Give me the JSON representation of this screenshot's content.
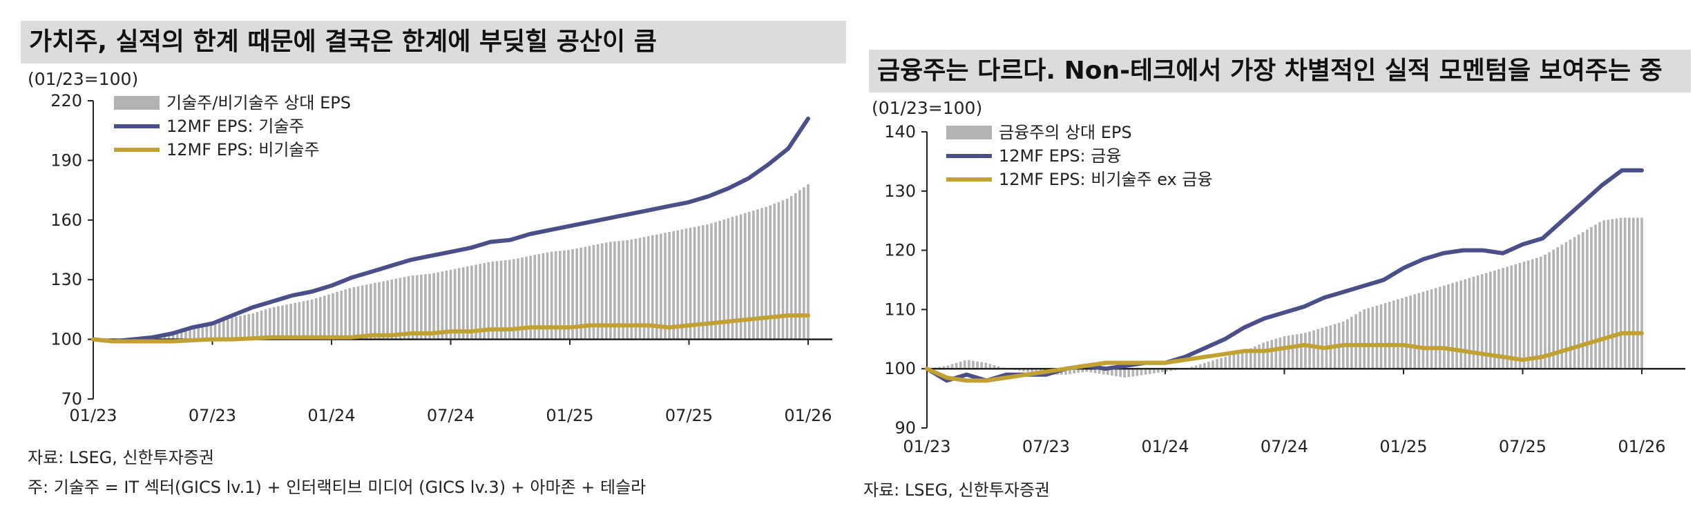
{
  "colors": {
    "tech": "#4a4f8a",
    "nontech": "#c2a133",
    "relative": "#b3b3b3",
    "title_bg": "#dcdcdc"
  },
  "left": {
    "title": "가치주, 실적의 한계 때문에 결국은 한계에 부딪힐 공산이 큼",
    "unit": "(01/23=100)",
    "source": "자료: LSEG, 신한투자증권",
    "footnote": "주: 기술주 = IT 섹터(GICS lv.1) + 인터랙티브 미디어 (GICS lv.3) + 아마존 + 테슬라"
  },
  "right": {
    "title": "금융주는 다르다. Non-테크에서 가장 차별적인 실적 모멘텀을 보여주는 중",
    "unit": "(01/23=100)",
    "source": "자료: LSEG, 신한투자증권"
  },
  "chart_data": [
    {
      "type": "line",
      "title": "가치주, 실적의 한계 때문에 결국은 한계에 부딪힐 공산이 큼",
      "ylabel": "(01/23=100)",
      "ylim": [
        70,
        220
      ],
      "yticks": [
        70,
        100,
        130,
        160,
        190,
        220
      ],
      "xlim": [
        0,
        36
      ],
      "xticks": [
        {
          "m": 0,
          "label": "01/23"
        },
        {
          "m": 6,
          "label": "07/23"
        },
        {
          "m": 12,
          "label": "01/24"
        },
        {
          "m": 18,
          "label": "07/24"
        },
        {
          "m": 24,
          "label": "01/25"
        },
        {
          "m": 30,
          "label": "07/25"
        },
        {
          "m": 36,
          "label": "01/26"
        }
      ],
      "baseline": 100,
      "legend": [
        "기술주/비기술주 상대 EPS",
        "12MF EPS: 기술주",
        "12MF EPS: 비기술주"
      ],
      "series": [
        {
          "name": "기술주/비기술주 상대 EPS",
          "kind": "bar",
          "x": [
            0,
            1,
            2,
            3,
            4,
            5,
            6,
            7,
            8,
            9,
            10,
            11,
            12,
            13,
            14,
            15,
            16,
            17,
            18,
            19,
            20,
            21,
            22,
            23,
            24,
            25,
            26,
            27,
            28,
            29,
            30,
            31,
            32,
            33,
            34,
            35,
            36
          ],
          "values": [
            100,
            99,
            100,
            101,
            104,
            106,
            108,
            111,
            113,
            116,
            118,
            120,
            123,
            126,
            128,
            130,
            132,
            133,
            135,
            137,
            139,
            140,
            142,
            144,
            145,
            147,
            149,
            150,
            152,
            154,
            156,
            158,
            161,
            164,
            167,
            171,
            178
          ]
        },
        {
          "name": "12MF EPS: 기술주",
          "kind": "line",
          "x": [
            0,
            1,
            2,
            3,
            4,
            5,
            6,
            7,
            8,
            9,
            10,
            11,
            12,
            13,
            14,
            15,
            16,
            17,
            18,
            19,
            20,
            21,
            22,
            23,
            24,
            25,
            26,
            27,
            28,
            29,
            30,
            31,
            32,
            33,
            34,
            35,
            36
          ],
          "values": [
            100,
            99,
            100,
            101,
            103,
            106,
            108,
            112,
            116,
            119,
            122,
            124,
            127,
            131,
            134,
            137,
            140,
            142,
            144,
            146,
            149,
            150,
            153,
            155,
            157,
            159,
            161,
            163,
            165,
            167,
            169,
            172,
            176,
            181,
            188,
            196,
            211
          ]
        },
        {
          "name": "12MF EPS: 비기술주",
          "kind": "line",
          "x": [
            0,
            1,
            2,
            3,
            4,
            5,
            6,
            7,
            8,
            9,
            10,
            11,
            12,
            13,
            14,
            15,
            16,
            17,
            18,
            19,
            20,
            21,
            22,
            23,
            24,
            25,
            26,
            27,
            28,
            29,
            30,
            31,
            32,
            33,
            34,
            35,
            36
          ],
          "values": [
            100,
            99,
            99,
            99,
            99,
            99.5,
            100,
            100,
            100.5,
            101,
            101,
            101,
            101,
            101,
            102,
            102,
            103,
            103,
            104,
            104,
            105,
            105,
            106,
            106,
            106,
            107,
            107,
            107,
            107,
            106,
            107,
            108,
            109,
            110,
            111,
            112,
            112
          ]
        }
      ]
    },
    {
      "type": "line",
      "title": "금융주는 다르다. Non-테크에서 가장 차별적인 실적 모멘텀을 보여주는 중",
      "ylabel": "(01/23=100)",
      "ylim": [
        90,
        140
      ],
      "yticks": [
        90,
        100,
        110,
        120,
        130,
        140
      ],
      "xlim": [
        0,
        36
      ],
      "xticks": [
        {
          "m": 0,
          "label": "01/23"
        },
        {
          "m": 6,
          "label": "07/23"
        },
        {
          "m": 12,
          "label": "01/24"
        },
        {
          "m": 18,
          "label": "07/24"
        },
        {
          "m": 24,
          "label": "01/25"
        },
        {
          "m": 30,
          "label": "07/25"
        },
        {
          "m": 36,
          "label": "01/26"
        }
      ],
      "baseline": 100,
      "legend": [
        "금융주의 상대 EPS",
        "12MF EPS: 금융",
        "12MF EPS: 비기술주 ex 금융"
      ],
      "series": [
        {
          "name": "금융주의 상대 EPS",
          "kind": "bar",
          "x": [
            0,
            1,
            2,
            3,
            4,
            5,
            6,
            7,
            8,
            9,
            10,
            11,
            12,
            13,
            14,
            15,
            16,
            17,
            18,
            19,
            20,
            21,
            22,
            23,
            24,
            25,
            26,
            27,
            28,
            29,
            30,
            31,
            32,
            33,
            34,
            35,
            36
          ],
          "values": [
            100,
            100.5,
            101.5,
            101,
            100,
            99.5,
            99,
            99,
            99.5,
            99,
            98.5,
            99,
            99.5,
            100,
            101,
            102,
            103,
            104.5,
            105.5,
            106,
            107,
            108,
            110,
            111,
            112,
            113,
            114,
            115,
            116,
            117,
            118,
            119,
            121,
            123,
            125,
            125.5,
            125.5
          ]
        },
        {
          "name": "12MF EPS: 금융",
          "kind": "line",
          "x": [
            0,
            1,
            2,
            3,
            4,
            5,
            6,
            7,
            8,
            9,
            10,
            11,
            12,
            13,
            14,
            15,
            16,
            17,
            18,
            19,
            20,
            21,
            22,
            23,
            24,
            25,
            26,
            27,
            28,
            29,
            30,
            31,
            32,
            33,
            34,
            35,
            36
          ],
          "values": [
            100,
            98,
            99,
            98,
            99,
            99,
            99,
            100,
            100.5,
            100,
            100.5,
            101,
            101,
            102,
            103.5,
            105,
            107,
            108.5,
            109.5,
            110.5,
            112,
            113,
            114,
            115,
            117,
            118.5,
            119.5,
            120,
            120,
            119.5,
            121,
            122,
            125,
            128,
            131,
            133.5,
            133.5
          ]
        },
        {
          "name": "12MF EPS: 비기술주 ex 금융",
          "kind": "line",
          "x": [
            0,
            1,
            2,
            3,
            4,
            5,
            6,
            7,
            8,
            9,
            10,
            11,
            12,
            13,
            14,
            15,
            16,
            17,
            18,
            19,
            20,
            21,
            22,
            23,
            24,
            25,
            26,
            27,
            28,
            29,
            30,
            31,
            32,
            33,
            34,
            35,
            36
          ],
          "values": [
            100,
            98.5,
            98,
            98,
            98.5,
            99,
            99.5,
            100,
            100.5,
            101,
            101,
            101,
            101,
            101.5,
            102,
            102.5,
            103,
            103,
            103.5,
            104,
            103.5,
            104,
            104,
            104,
            104,
            103.5,
            103.5,
            103,
            102.5,
            102,
            101.5,
            102,
            103,
            104,
            105,
            106,
            106
          ]
        }
      ]
    }
  ]
}
